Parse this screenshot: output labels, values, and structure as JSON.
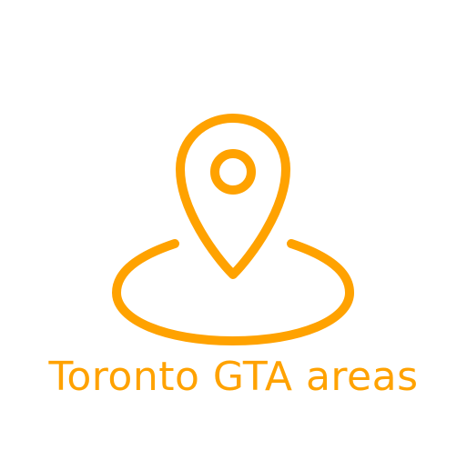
{
  "caption": {
    "text": "Toronto GTA areas"
  },
  "icon": {
    "name": "map-pin-location-icon",
    "color": "#ffa200"
  },
  "colors": {
    "accent": "#ffa200",
    "background": "#ffffff"
  }
}
